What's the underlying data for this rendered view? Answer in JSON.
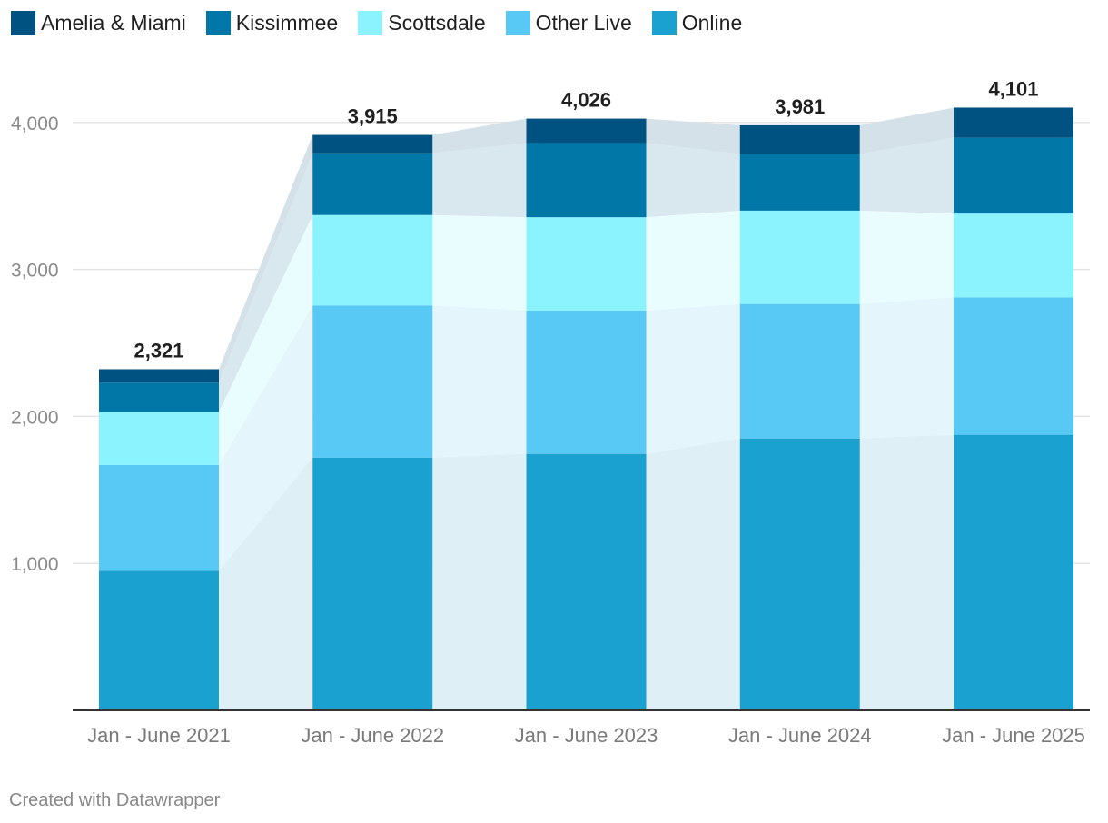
{
  "chart_data": {
    "type": "bar",
    "stacked": true,
    "categories": [
      "Jan - June 2021",
      "Jan - June 2022",
      "Jan - June 2023",
      "Jan - June 2024",
      "Jan - June 2025"
    ],
    "series": [
      {
        "name": "Online",
        "color": "#1aa1cf",
        "band": "#dfeff6",
        "values": [
          950,
          1720,
          1745,
          1850,
          1875
        ]
      },
      {
        "name": "Other Live",
        "color": "#58c9f4",
        "band": "#e4f5fb",
        "values": [
          720,
          1035,
          975,
          915,
          935
        ]
      },
      {
        "name": "Scottsdale",
        "color": "#8af3fe",
        "band": "#e9fdfe",
        "values": [
          360,
          615,
          635,
          635,
          570
        ]
      },
      {
        "name": "Kissimmee",
        "color": "#0077a6",
        "band": "#d9e7ee",
        "values": [
          200,
          420,
          505,
          385,
          515
        ]
      },
      {
        "name": "Amelia & Miami",
        "color": "#005380",
        "band": "#d5e1e8",
        "values": [
          91,
          125,
          166,
          196,
          206
        ]
      }
    ],
    "totals": [
      "2,321",
      "3,915",
      "4,026",
      "3,981",
      "4,101"
    ],
    "legend_order": [
      "Amelia & Miami",
      "Kissimmee",
      "Scottsdale",
      "Other Live",
      "Online"
    ],
    "y_ticks": [
      1000,
      2000,
      3000,
      4000
    ],
    "y_tick_labels": [
      "1,000",
      "2,000",
      "3,000",
      "4,000"
    ],
    "ylim": [
      0,
      4000
    ],
    "title": "",
    "xlabel": "",
    "ylabel": ""
  },
  "legend": {
    "items": [
      {
        "label": "Amelia & Miami",
        "color": "#005380"
      },
      {
        "label": "Kissimmee",
        "color": "#0077a6"
      },
      {
        "label": "Scottsdale",
        "color": "#8af3fe"
      },
      {
        "label": "Other Live",
        "color": "#58c9f4"
      },
      {
        "label": "Online",
        "color": "#1aa1cf"
      }
    ]
  },
  "footer": {
    "credit": "Created with Datawrapper"
  }
}
